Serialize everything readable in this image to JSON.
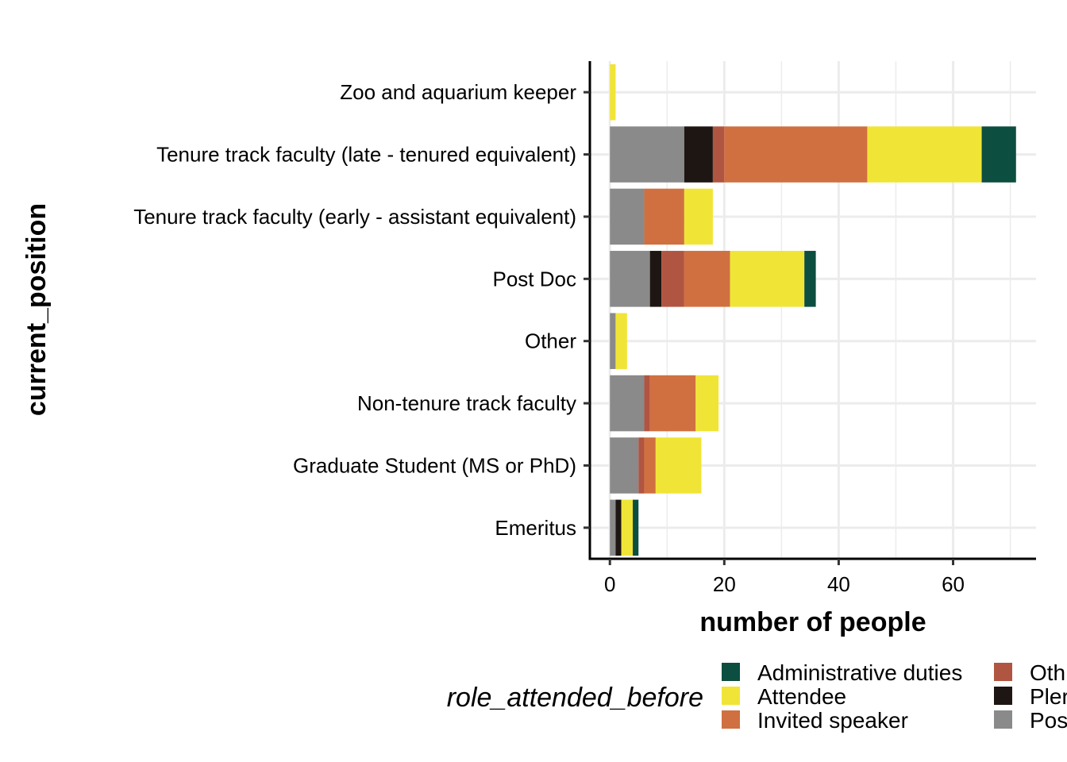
{
  "chart_data": {
    "type": "bar",
    "orientation": "horizontal",
    "stacked": true,
    "xlabel": "number of people",
    "ylabel": "current_position",
    "xlim": [
      -3.5,
      74.5
    ],
    "xticks": [
      0,
      20,
      40,
      60
    ],
    "grid": true,
    "legend_title": "role_attended_before",
    "legend_position": "bottom",
    "categories": [
      "Emeritus",
      "Graduate Student (MS or PhD)",
      "Non-tenure track faculty",
      "Other",
      "Post Doc",
      "Tenure track faculty (early - assistant equivalent)",
      "Tenure track faculty (late - tenured equivalent)",
      "Zoo and aquarium keeper"
    ],
    "series": [
      {
        "name": "Poster presenter",
        "legend_label": "Pos",
        "color": "#8a8a8a",
        "values": [
          1,
          5,
          6,
          1,
          7,
          6,
          13,
          0
        ]
      },
      {
        "name": "Plenary speaker",
        "legend_label": "Pler",
        "color": "#1e1612",
        "values": [
          1,
          0,
          0,
          0,
          2,
          0,
          5,
          0
        ]
      },
      {
        "name": "Other",
        "legend_label": "Oth",
        "color": "#b05541",
        "values": [
          0,
          1,
          1,
          0,
          4,
          0,
          2,
          0
        ]
      },
      {
        "name": "Invited speaker",
        "legend_label": "Invited speaker",
        "color": "#d07040",
        "values": [
          0,
          2,
          8,
          0,
          8,
          7,
          25,
          0
        ]
      },
      {
        "name": "Attendee",
        "legend_label": "Attendee",
        "color": "#f0e536",
        "values": [
          2,
          8,
          4,
          2,
          13,
          5,
          20,
          1
        ]
      },
      {
        "name": "Administrative duties",
        "legend_label": "Administrative duties",
        "color": "#0c4e40",
        "values": [
          1,
          0,
          0,
          0,
          2,
          0,
          6,
          0
        ]
      }
    ],
    "legend_order": [
      "Administrative duties",
      "Attendee",
      "Invited speaker",
      "Other",
      "Plenary speaker",
      "Poster presenter"
    ]
  }
}
